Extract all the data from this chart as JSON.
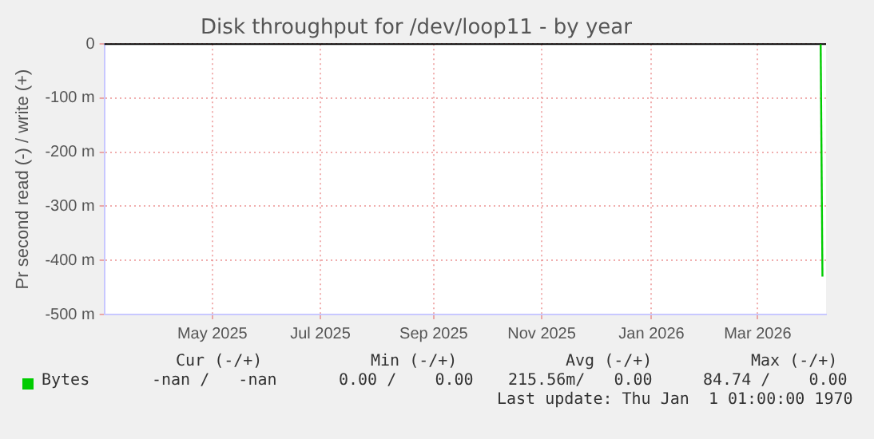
{
  "chart_data": {
    "type": "line",
    "title": "Disk throughput for /dev/loop11 - by year",
    "ylabel": "Pr second read (-) / write (+)",
    "x": [
      "2026-04-19",
      "2026-04-20"
    ],
    "series": [
      {
        "name": "Bytes",
        "color": "#00cc00",
        "values": [
          0,
          -430
        ]
      }
    ],
    "xlim": [
      "2025-03-17",
      "2026-04-22"
    ],
    "xticks": [
      {
        "value": "2025-05-16",
        "label": "May 2025"
      },
      {
        "value": "2025-07-15",
        "label": "Jul 2025"
      },
      {
        "value": "2025-09-16",
        "label": "Sep 2025"
      },
      {
        "value": "2025-11-15",
        "label": "Nov 2025"
      },
      {
        "value": "2026-01-15",
        "label": "Jan 2026"
      },
      {
        "value": "2026-03-15",
        "label": "Mar 2026"
      }
    ],
    "ylim": [
      -500,
      0
    ],
    "yticks": [
      {
        "value": 0,
        "label": "0"
      },
      {
        "value": -100,
        "label": "-100 m"
      },
      {
        "value": -200,
        "label": "-200 m"
      },
      {
        "value": -300,
        "label": "-300 m"
      },
      {
        "value": -400,
        "label": "-400 m"
      },
      {
        "value": -500,
        "label": "-500 m"
      }
    ],
    "grid": true,
    "legend": "bottom left",
    "marker": "none",
    "line_style": "solid",
    "annotations": [
      "Cur (-/+)",
      "Min (-/+)",
      "Avg (-/+)",
      "Max (-/+)",
      "-nan /   -nan",
      "0.00 /    0.00",
      "215.56m/   0.00",
      "84.74 /    0.00",
      "Last update: Thu Jan  1 01:00:00 1970"
    ]
  }
}
